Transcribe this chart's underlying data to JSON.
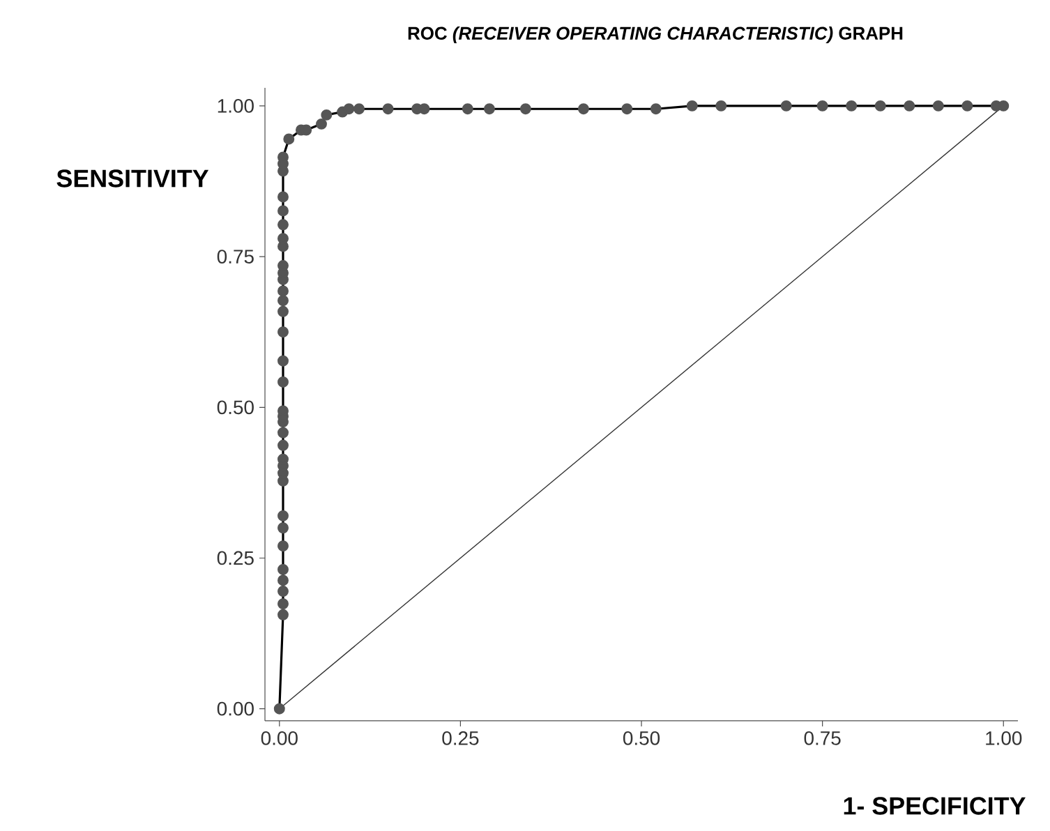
{
  "chart_data": {
    "type": "line",
    "title": "ROC *(RECEIVER OPERATING CHARACTERISTIC)* GRAPH",
    "xlabel": "1- SPECIFICITY",
    "ylabel": "SENSITIVITY",
    "xlim": [
      -0.02,
      1.02
    ],
    "ylim": [
      -0.02,
      1.03
    ],
    "xticks": [
      {
        "value": 0,
        "label": "0.00"
      },
      {
        "value": 0.25,
        "label": "0.25"
      },
      {
        "value": 0.5,
        "label": "0.50"
      },
      {
        "value": 0.75,
        "label": "0.75"
      },
      {
        "value": 1,
        "label": "1.00"
      }
    ],
    "yticks": [
      {
        "value": 0,
        "label": "0.00"
      },
      {
        "value": 0.25,
        "label": "0.25"
      },
      {
        "value": 0.5,
        "label": "0.50"
      },
      {
        "value": 0.75,
        "label": "0.75"
      },
      {
        "value": 1,
        "label": "1.00"
      }
    ],
    "grid": false,
    "series": [
      {
        "marker": "circle",
        "line_style": "solid",
        "color": "#555555",
        "x": [
          0,
          0.005,
          0.005,
          0.005,
          0.005,
          0.005,
          0.005,
          0.005,
          0.005,
          0.005,
          0.005,
          0.005,
          0.005,
          0.005,
          0.005,
          0.005,
          0.005,
          0.005,
          0.005,
          0.005,
          0.005,
          0.005,
          0.005,
          0.005,
          0.005,
          0.005,
          0.005,
          0.005,
          0.005,
          0.005,
          0.005,
          0.005,
          0.005,
          0.005,
          0.005,
          0.013,
          0.03,
          0.037,
          0.058,
          0.065,
          0.087,
          0.096,
          0.11,
          0.15,
          0.19,
          0.2,
          0.26,
          0.29,
          0.34,
          0.42,
          0.48,
          0.52,
          0.57,
          0.61,
          0.7,
          0.75,
          0.79,
          0.83,
          0.87,
          0.91,
          0.95,
          0.99,
          1
        ],
        "values": [
          0,
          0.156,
          0.174,
          0.195,
          0.213,
          0.231,
          0.27,
          0.3,
          0.32,
          0.378,
          0.391,
          0.403,
          0.414,
          0.437,
          0.458,
          0.476,
          0.485,
          0.494,
          0.542,
          0.577,
          0.625,
          0.659,
          0.677,
          0.693,
          0.712,
          0.723,
          0.735,
          0.767,
          0.78,
          0.803,
          0.826,
          0.849,
          0.892,
          0.904,
          0.915,
          0.945,
          0.96,
          0.96,
          0.97,
          0.985,
          0.99,
          0.995,
          0.995,
          0.995,
          0.995,
          0.995,
          0.995,
          0.995,
          0.995,
          0.995,
          0.995,
          0.995,
          1,
          1,
          1,
          1,
          1,
          1,
          1,
          1,
          1,
          1,
          1
        ]
      },
      {
        "marker": "none",
        "line_style": "solid",
        "color": "#333333",
        "x": [
          0,
          1
        ],
        "values": [
          0,
          1
        ]
      }
    ]
  }
}
